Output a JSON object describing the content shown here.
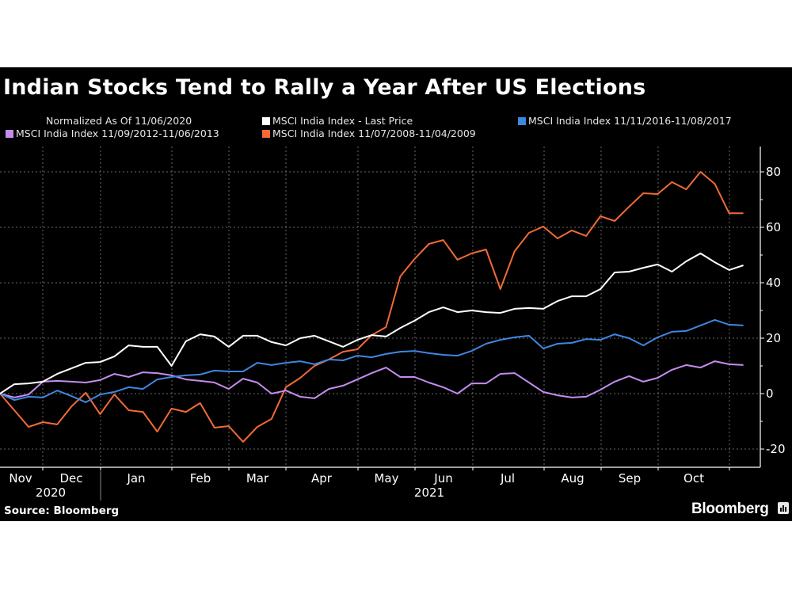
{
  "title": "Indian Stocks Tend to Rally a Year After US Elections",
  "subtitle": "Normalized As Of 11/06/2020",
  "source": "Source: Bloomberg",
  "brand": "Bloomberg",
  "colors": {
    "background": "#000000",
    "last_price": "#ffffff",
    "series_2016": "#3f86e0",
    "series_2012": "#c58cf0",
    "series_2008": "#f26a36",
    "grid": "#6a6a6a"
  },
  "legend": [
    {
      "label": "MSCI India Index - Last Price",
      "color": "#ffffff"
    },
    {
      "label": "MSCI India Index 11/11/2016-11/08/2017",
      "color": "#3f86e0"
    },
    {
      "label": "MSCI India Index 11/09/2012-11/06/2013",
      "color": "#c58cf0"
    },
    {
      "label": "MSCI India Index 11/07/2008-11/04/2009",
      "color": "#f26a36"
    }
  ],
  "chart_data": {
    "type": "line",
    "title": "Indian Stocks Tend to Rally a Year After US Elections",
    "subtitle": "Normalized As Of 11/06/2020",
    "xlabel": "",
    "ylabel": "",
    "x_tick_labels": [
      "Nov",
      "Dec",
      "Jan",
      "Feb",
      "Mar",
      "Apr",
      "May",
      "Jun",
      "Jul",
      "Aug",
      "Sep",
      "Oct"
    ],
    "x_year_labels": [
      "2020",
      "2021"
    ],
    "x_description": "Weekly observations from 11/06/2020 to early Nov 2021 (53 points)",
    "y_ticks": [
      -20,
      0,
      20,
      40,
      60,
      80
    ],
    "ylim": [
      -24,
      89
    ],
    "y_axis_side": "right",
    "grid": true,
    "legend_position": "top",
    "series": [
      {
        "name": "MSCI India Index - Last Price",
        "color": "#ffffff",
        "values": [
          0,
          3.4,
          3.7,
          4.3,
          7.1,
          9.1,
          11.1,
          11.4,
          13.4,
          17.4,
          16.9,
          16.9,
          10.0,
          18.9,
          21.4,
          20.6,
          16.9,
          20.9,
          20.9,
          18.6,
          17.4,
          20.0,
          20.9,
          18.9,
          16.9,
          19.4,
          21.1,
          20.6,
          23.7,
          26.3,
          29.4,
          31.1,
          29.4,
          30.0,
          29.4,
          29.1,
          30.6,
          30.9,
          30.6,
          33.4,
          35.1,
          35.1,
          37.7,
          43.7,
          44.0,
          45.4,
          46.6,
          44.0,
          47.7,
          50.6,
          47.4,
          44.6,
          46.3
        ]
      },
      {
        "name": "MSCI India Index 11/11/2016-11/08/2017",
        "color": "#3f86e0",
        "values": [
          0,
          -2.3,
          -1.1,
          -1.4,
          1.1,
          -0.9,
          -3.1,
          -0.3,
          0.6,
          2.3,
          1.7,
          5.1,
          6.0,
          6.6,
          6.9,
          8.3,
          8.0,
          8.0,
          11.1,
          10.3,
          11.1,
          11.7,
          10.6,
          12.3,
          12.0,
          13.7,
          13.1,
          14.3,
          15.1,
          15.4,
          14.6,
          14.0,
          13.7,
          15.4,
          18.0,
          19.4,
          20.3,
          20.9,
          16.3,
          18.0,
          18.3,
          19.7,
          19.4,
          21.4,
          20.0,
          17.4,
          20.3,
          22.3,
          22.6,
          24.6,
          26.6,
          24.9,
          24.6
        ]
      },
      {
        "name": "MSCI India Index 11/09/2012-11/06/2013",
        "color": "#c58cf0",
        "values": [
          0,
          -1.4,
          -0.3,
          4.3,
          4.6,
          4.3,
          4.0,
          4.9,
          7.1,
          6.0,
          7.7,
          7.4,
          6.6,
          5.1,
          4.6,
          4.0,
          1.7,
          5.4,
          4.0,
          0,
          1.1,
          -1.1,
          -1.7,
          1.7,
          2.9,
          5.1,
          7.4,
          9.4,
          6.0,
          6.0,
          4.0,
          2.3,
          0,
          3.7,
          3.7,
          7.1,
          7.4,
          4.0,
          0.6,
          -0.6,
          -1.4,
          -1.1,
          1.4,
          4.3,
          6.3,
          4.3,
          5.7,
          8.6,
          10.3,
          9.4,
          11.7,
          10.6,
          10.3
        ]
      },
      {
        "name": "MSCI India Index 11/07/2008-11/04/2009",
        "color": "#f26a36",
        "values": [
          0,
          -6.0,
          -12.0,
          -10.3,
          -11.1,
          -4.6,
          0.3,
          -7.4,
          -0.3,
          -6.0,
          -6.6,
          -13.7,
          -5.4,
          -6.6,
          -3.4,
          -12.3,
          -11.7,
          -17.4,
          -12.0,
          -9.1,
          2.3,
          5.7,
          10.0,
          12.3,
          15.1,
          16.0,
          21.1,
          24.0,
          42.3,
          48.6,
          54.0,
          55.4,
          48.3,
          50.6,
          52.0,
          37.7,
          51.4,
          58.0,
          60.3,
          56.0,
          58.9,
          56.9,
          64.0,
          62.3,
          67.4,
          72.3,
          72.0,
          76.3,
          73.7,
          80.0,
          75.7,
          65.1,
          65.1
        ]
      }
    ]
  }
}
